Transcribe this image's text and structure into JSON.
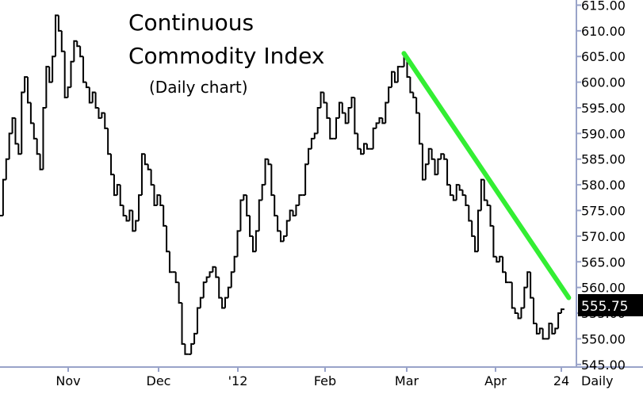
{
  "chart_data": {
    "type": "line",
    "title_line1": "Continuous",
    "title_line2": "Commodity Index",
    "subtitle": "(Daily chart)",
    "x_ticks": [
      "Nov",
      "Dec",
      "'12",
      "Feb",
      "Mar",
      "Apr",
      "24"
    ],
    "x_axis_note": "Daily",
    "y_ticks": [
      545,
      550,
      555,
      560,
      565,
      570,
      575,
      580,
      585,
      590,
      595,
      600,
      605,
      610,
      615
    ],
    "y_tick_labels": [
      "545.00",
      "550.00",
      "555.00",
      "560.00",
      "565.00",
      "570.00",
      "575.00",
      "580.00",
      "585.00",
      "590.00",
      "595.00",
      "600.00",
      "605.00",
      "610.00",
      "615.00"
    ],
    "ylim": [
      544.5,
      616
    ],
    "last_value_label": "555.75",
    "last_value": 555.75,
    "grid": false,
    "series": [
      {
        "values": [
          574,
          581,
          585,
          590,
          593,
          588,
          586,
          598,
          601,
          596,
          592,
          589,
          586,
          583,
          595,
          603,
          600,
          605,
          613,
          610,
          606,
          597,
          599,
          604,
          608,
          607,
          605,
          600,
          599,
          596,
          598,
          595,
          593,
          594,
          591,
          586,
          582,
          578,
          580,
          576,
          574,
          573,
          575,
          571,
          573,
          578,
          586,
          584,
          583,
          580,
          576,
          578,
          576,
          572,
          567,
          563,
          563,
          561,
          557,
          549,
          547,
          547,
          549,
          551,
          556,
          558,
          561,
          562,
          563,
          564,
          562,
          558,
          556,
          558,
          560,
          563,
          566,
          571,
          577,
          578,
          574,
          570,
          567,
          571,
          577,
          580,
          585,
          584,
          578,
          574,
          571,
          569,
          570,
          573,
          575,
          574,
          576,
          578,
          578,
          584,
          587,
          589,
          590,
          595,
          598,
          596,
          593,
          589,
          589,
          593,
          596,
          594,
          592,
          595,
          597,
          590,
          587,
          586,
          588,
          587,
          587,
          591,
          592,
          593,
          592,
          596,
          599,
          602,
          600,
          603,
          603,
          605,
          601,
          598,
          597,
          594,
          588,
          581,
          584,
          587,
          585,
          582,
          585,
          586,
          585,
          580,
          578,
          577,
          580,
          579,
          578,
          576,
          573,
          570,
          567,
          575,
          581,
          577,
          576,
          572,
          566,
          565,
          566,
          563,
          561,
          561,
          556,
          555,
          554,
          556,
          560,
          563,
          558,
          553,
          551,
          552,
          550,
          550,
          553,
          551,
          552,
          555,
          555.75
        ],
        "start_date": "2011-10-18",
        "end_date": "2012-04-24"
      }
    ],
    "trendline": {
      "color": "#33ee33",
      "from": {
        "date": "2012-02-29",
        "value": 605.6
      },
      "to": {
        "date": "2012-04-26",
        "value": 558
      }
    }
  },
  "colors": {
    "price": "#000000",
    "axis": "#99a3c9",
    "trendline": "#33ee33",
    "last_value_box": "#000000",
    "last_value_text": "#ffffff"
  }
}
